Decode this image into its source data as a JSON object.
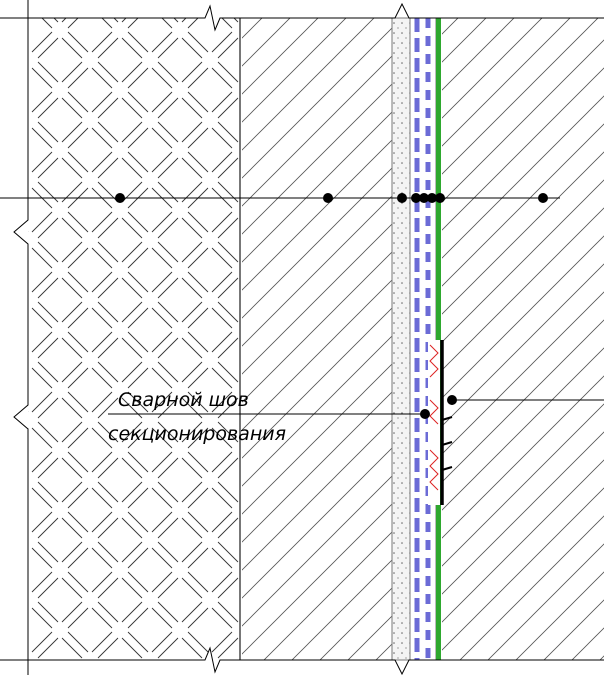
{
  "callout": {
    "lines": [
      "Сварной шов",
      "секционирования"
    ]
  }
}
